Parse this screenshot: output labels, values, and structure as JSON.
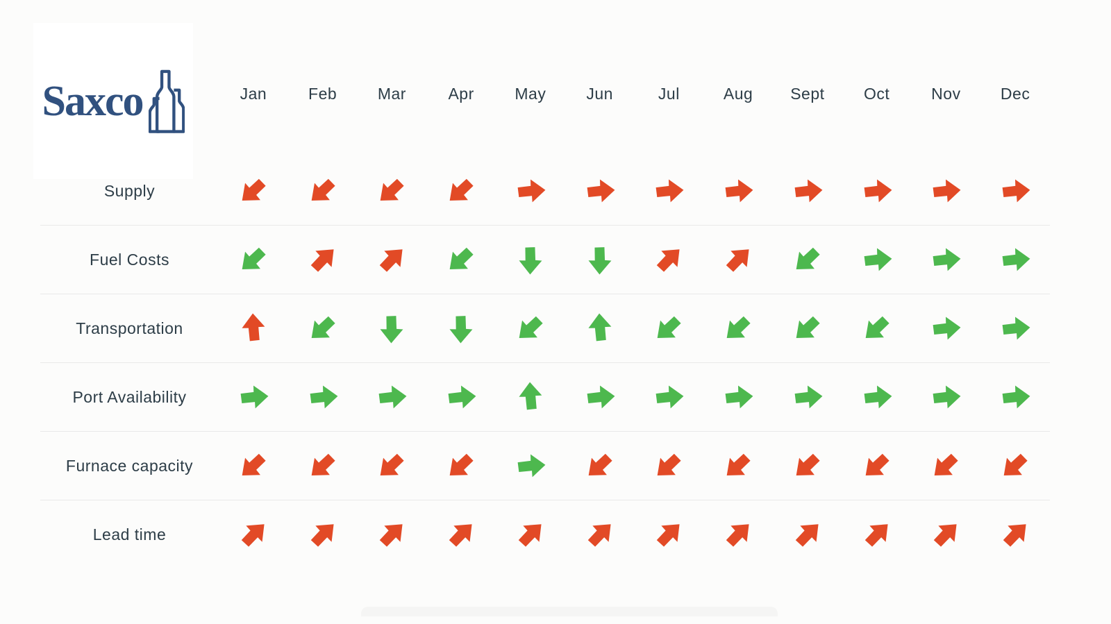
{
  "logo": {
    "text": "Saxco",
    "color": "#31517f",
    "icon": "bottles-icon"
  },
  "colors": {
    "red": "#e24a26",
    "green": "#4db84e",
    "text": "#2d3d47",
    "background": "#fcfcfb",
    "separator": "#e9e9e9"
  },
  "chart_data": {
    "type": "table",
    "title": "",
    "description": "Monthly trend matrix of supply chain indicators shown as colored directional arrows (red = unfavorable, green = favorable). Directions: right = neutral/steady, up = increase, down = decrease, up-right = rising, down-left = falling.",
    "columns": [
      "Jan",
      "Feb",
      "Mar",
      "Apr",
      "May",
      "Jun",
      "Jul",
      "Aug",
      "Sept",
      "Oct",
      "Nov",
      "Dec"
    ],
    "rows": [
      {
        "label": "Supply",
        "cells": [
          "down-left|red",
          "down-left|red",
          "down-left|red",
          "down-left|red",
          "right|red",
          "right|red",
          "right|red",
          "right|red",
          "right|red",
          "right|red",
          "right|red",
          "right|red"
        ]
      },
      {
        "label": "Fuel Costs",
        "cells": [
          "down-left|green",
          "up-right|red",
          "up-right|red",
          "down-left|green",
          "down|green",
          "down|green",
          "up-right|red",
          "up-right|red",
          "down-left|green",
          "right|green",
          "right|green",
          "right|green"
        ]
      },
      {
        "label": "Transportation",
        "cells": [
          "up|red",
          "down-left|green",
          "down|green",
          "down|green",
          "down-left|green",
          "up|green",
          "down-left|green",
          "down-left|green",
          "down-left|green",
          "down-left|green",
          "right|green",
          "right|green"
        ]
      },
      {
        "label": "Port Availability",
        "cells": [
          "right|green",
          "right|green",
          "right|green",
          "right|green",
          "up|green",
          "right|green",
          "right|green",
          "right|green",
          "right|green",
          "right|green",
          "right|green",
          "right|green"
        ]
      },
      {
        "label": "Furnace capacity",
        "cells": [
          "down-left|red",
          "down-left|red",
          "down-left|red",
          "down-left|red",
          "right|green",
          "down-left|red",
          "down-left|red",
          "down-left|red",
          "down-left|red",
          "down-left|red",
          "down-left|red",
          "down-left|red"
        ]
      },
      {
        "label": "Lead time",
        "cells": [
          "up-right|red",
          "up-right|red",
          "up-right|red",
          "up-right|red",
          "up-right|red",
          "up-right|red",
          "up-right|red",
          "up-right|red",
          "up-right|red",
          "up-right|red",
          "up-right|red",
          "up-right|red"
        ]
      }
    ]
  }
}
